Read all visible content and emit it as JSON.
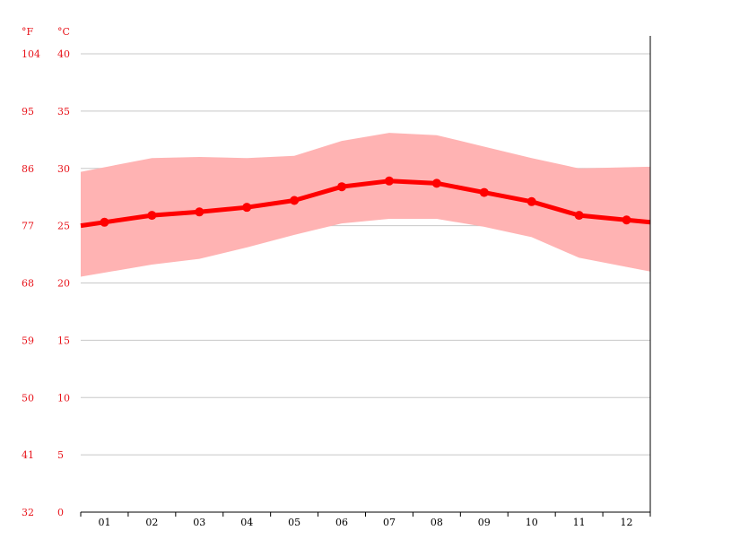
{
  "chart_data": {
    "type": "area",
    "title": "",
    "xlabel": "",
    "ylabel": "",
    "unit_f_label": "°F",
    "unit_c_label": "°C",
    "categories": [
      "01",
      "02",
      "03",
      "04",
      "05",
      "06",
      "07",
      "08",
      "09",
      "10",
      "11",
      "12"
    ],
    "ylim": [
      0,
      40
    ],
    "y_ticks_c": [
      "0",
      "5",
      "10",
      "15",
      "20",
      "25",
      "30",
      "35",
      "40"
    ],
    "y_ticks_f": [
      "32",
      "41",
      "50",
      "59",
      "68",
      "77",
      "86",
      "95",
      "104"
    ],
    "series": [
      {
        "role": "mean",
        "values": [
          25.3,
          25.9,
          26.2,
          26.6,
          27.2,
          28.4,
          28.9,
          28.7,
          27.9,
          27.1,
          25.9,
          25.5
        ]
      },
      {
        "role": "max",
        "values": [
          30.1,
          30.9,
          31.0,
          30.9,
          31.1,
          32.4,
          33.1,
          32.9,
          31.9,
          30.9,
          30.0,
          30.1
        ]
      },
      {
        "role": "min",
        "values": [
          20.9,
          21.6,
          22.1,
          23.1,
          24.2,
          25.2,
          25.6,
          25.6,
          24.9,
          24.0,
          22.2,
          21.4
        ]
      }
    ],
    "grid": true,
    "legend": "none",
    "colors": {
      "mean": "#ff0000",
      "range": "#ffb3b3",
      "axis_text": "#e8141b",
      "grid": "#c8c8c8"
    }
  }
}
